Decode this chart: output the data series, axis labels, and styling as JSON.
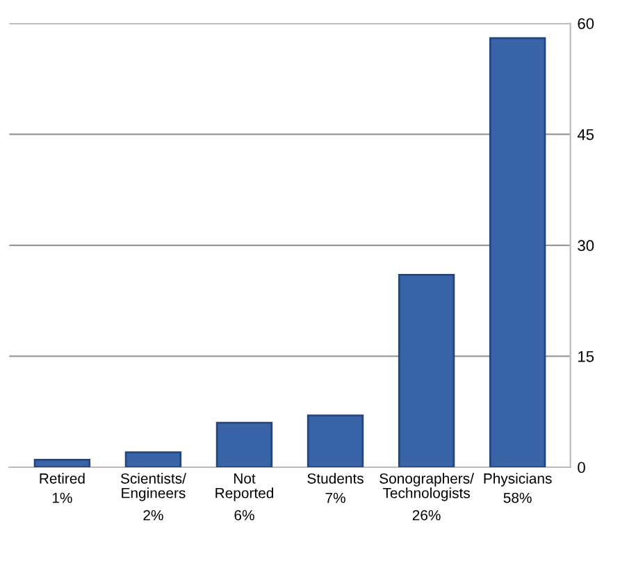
{
  "chart_data": {
    "type": "bar",
    "categories": [
      "Retired",
      "Scientists/\nEngineers",
      "Not\nReported",
      "Students",
      "Sonographers/\nTechnologists",
      "Physicians"
    ],
    "values": [
      1,
      2,
      6,
      7,
      26,
      58
    ],
    "value_labels": [
      "1%",
      "2%",
      "6%",
      "7%",
      "26%",
      "58%"
    ],
    "color": "#3a64a8",
    "ylim": [
      0,
      60
    ],
    "yticks": [
      0,
      15,
      30,
      45,
      60
    ],
    "grid": "y"
  }
}
